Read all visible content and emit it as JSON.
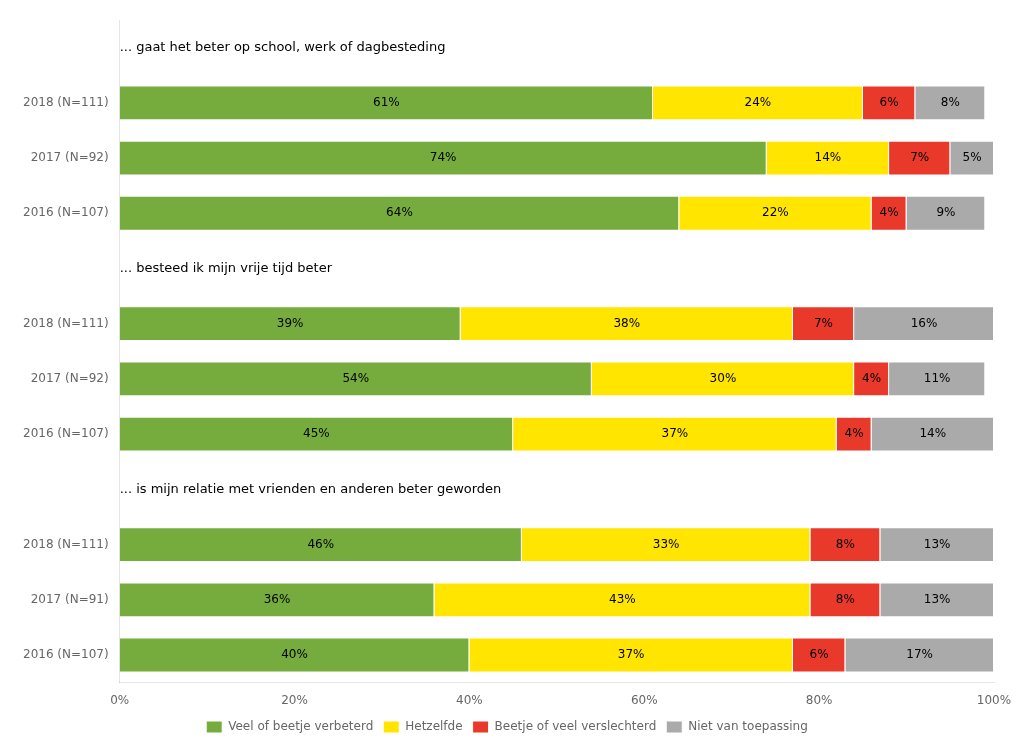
{
  "chart_data": {
    "type": "bar",
    "orientation": "horizontal",
    "stacked": true,
    "data_labels": true,
    "categories": [
      null,
      "2018 (N=111)",
      "2017 (N=92)",
      "2016 (N=107)",
      null,
      "2018 (N=111)",
      "2017 (N=92)",
      "2016 (N=107)",
      null,
      "2018 (N=111)",
      "2017 (N=91)",
      "2016 (N=107)"
    ],
    "series": [
      {
        "name": "Veel of beetje verbeterd",
        "color": "#76AC3D",
        "values": [
          null,
          61,
          74,
          64,
          null,
          39,
          54,
          45,
          null,
          46,
          36,
          40
        ],
        "value_labels": [
          null,
          "61%",
          "74%",
          "64%",
          null,
          "39%",
          "54%",
          "45%",
          null,
          "46%",
          "36%",
          "40%"
        ]
      },
      {
        "name": "Hetzelfde",
        "color": "#FFE500",
        "values": [
          null,
          24,
          14,
          22,
          null,
          38,
          30,
          37,
          null,
          33,
          43,
          37
        ],
        "value_labels": [
          null,
          "24%",
          "14%",
          "22%",
          null,
          "38%",
          "30%",
          "37%",
          null,
          "33%",
          "43%",
          "37%"
        ]
      },
      {
        "name": "Beetje of veel verslechterd",
        "color": "#E8392A",
        "values": [
          null,
          6,
          7,
          4,
          null,
          7,
          4,
          4,
          null,
          8,
          8,
          6
        ],
        "value_labels": [
          null,
          "6%",
          "7%",
          "4%",
          null,
          "7%",
          "4%",
          "4%",
          null,
          "8%",
          "8%",
          "6%"
        ]
      },
      {
        "name": "Niet van toepassing",
        "color": "#AAAAAA",
        "values": [
          null,
          8,
          5,
          9,
          null,
          16,
          11,
          14,
          null,
          13,
          13,
          17
        ],
        "value_labels": [
          null,
          "8%",
          "5%",
          "9%",
          null,
          "16%",
          "11%",
          "14%",
          null,
          "13%",
          "13%",
          "17%"
        ]
      }
    ],
    "annotations": [
      {
        "text": "... gaat het beter op school, werk of dagbesteding",
        "x": 0,
        "y": 0
      },
      {
        "text": "... besteed ik mijn vrije tijd beter",
        "x": 0,
        "y": 4
      },
      {
        "text": "... is mijn relatie met vrienden en anderen beter geworden",
        "x": 0,
        "y": 8
      }
    ],
    "xlim": [
      0,
      100
    ],
    "xticks": [
      {
        "value": 0,
        "label": "0%"
      },
      {
        "value": 20,
        "label": "20%"
      },
      {
        "value": 40,
        "label": "40%"
      },
      {
        "value": 60,
        "label": "60%"
      },
      {
        "value": 80,
        "label": "80%"
      },
      {
        "value": 100,
        "label": "100%"
      }
    ],
    "grid": false,
    "legend": "bottom"
  }
}
